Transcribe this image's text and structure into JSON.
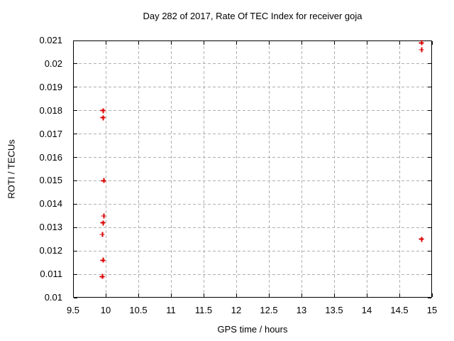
{
  "chart_data": {
    "type": "scatter",
    "title": "Day 282 of 2017, Rate Of TEC Index for receiver goja",
    "xlabel": "GPS time / hours",
    "ylabel": "ROTI / TECUs",
    "xlim": [
      9.5,
      15
    ],
    "ylim": [
      0.01,
      0.021
    ],
    "x_ticks": [
      9.5,
      10,
      10.5,
      11,
      11.5,
      12,
      12.5,
      13,
      13.5,
      14,
      14.5,
      15
    ],
    "x_tick_labels": [
      "9.5",
      "10",
      "10.5",
      "11",
      "11.5",
      "12",
      "12.5",
      "13",
      "13.5",
      "14",
      "14.5",
      "15"
    ],
    "y_ticks": [
      0.01,
      0.011,
      0.012,
      0.013,
      0.014,
      0.015,
      0.016,
      0.017,
      0.018,
      0.019,
      0.02,
      0.021
    ],
    "y_tick_labels": [
      "0.01",
      "0.011",
      "0.012",
      "0.013",
      "0.014",
      "0.015",
      "0.016",
      "0.017",
      "0.018",
      "0.019",
      "0.02",
      "0.021"
    ],
    "grid": true,
    "grid_style": "dashed",
    "legend": "none",
    "marker": "plus",
    "marker_color": "#dd0000",
    "grid_color": "#b0b0b0",
    "axis_color": "#000000",
    "background_color": "#ffffff",
    "series": [
      {
        "name": "ROTI",
        "points": [
          [
            9.96,
            0.018
          ],
          [
            9.96,
            0.0177
          ],
          [
            9.97,
            0.015
          ],
          [
            9.97,
            0.0135
          ],
          [
            9.96,
            0.0132
          ],
          [
            9.95,
            0.0127
          ],
          [
            9.96,
            0.0116
          ],
          [
            9.95,
            0.0109
          ],
          [
            14.84,
            0.0209
          ],
          [
            14.84,
            0.0206
          ],
          [
            14.84,
            0.0125
          ]
        ]
      }
    ]
  }
}
